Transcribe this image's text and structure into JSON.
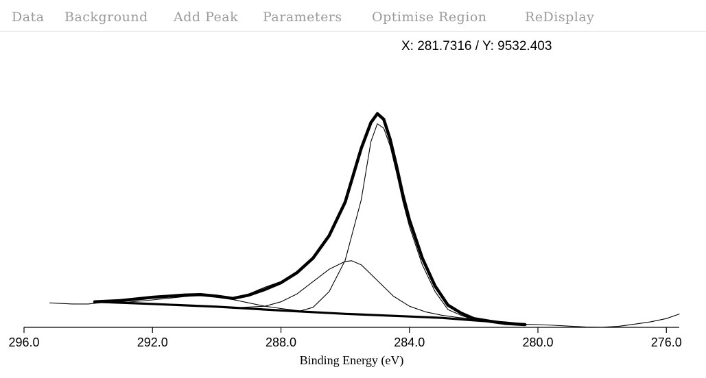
{
  "menu": {
    "items": [
      {
        "id": "data",
        "label": "Data"
      },
      {
        "id": "background",
        "label": "Background"
      },
      {
        "id": "add-peak",
        "label": "Add Peak"
      },
      {
        "id": "parameters",
        "label": "Parameters"
      },
      {
        "id": "optimise-region",
        "label": "Optimise Region"
      },
      {
        "id": "redisplay",
        "label": "ReDisplay"
      }
    ]
  },
  "cursor_readout": "X: 281.7316 / Y: 9532.403",
  "colors": {
    "menu_text": "#9a9a9a",
    "curve": "#000000",
    "background": "#ffffff"
  },
  "chart_data": {
    "type": "line",
    "title": "",
    "xlabel": "Binding Energy (eV)",
    "ylabel": "",
    "x_reversed": true,
    "xlim": [
      296.0,
      275.6
    ],
    "ylim": [
      0,
      1
    ],
    "x_ticks": [
      296.0,
      292.0,
      288.0,
      284.0,
      280.0,
      276.0
    ],
    "x_tick_labels": [
      "296.0",
      "292.0",
      "288.0",
      "284.0",
      "280.0",
      "276.0"
    ],
    "grid": false,
    "legend": "none",
    "series": [
      {
        "role": "raw-data",
        "x": [
          295.2,
          294.5,
          294.0,
          293.0,
          292.0,
          291.0,
          290.5,
          290.0,
          289.5,
          289.0,
          288.5,
          288.0,
          287.5,
          287.0,
          286.5,
          286.0,
          285.5,
          285.2,
          285.0,
          284.8,
          284.6,
          284.4,
          284.2,
          284.0,
          283.6,
          283.2,
          282.8,
          282.4,
          282.0,
          281.5,
          281.0,
          280.5,
          280.0,
          279.5,
          279.0,
          278.5,
          278.0,
          277.5,
          277.0,
          276.5,
          276.0,
          275.6
        ],
        "y": [
          0.1,
          0.095,
          0.095,
          0.11,
          0.125,
          0.135,
          0.135,
          0.125,
          0.12,
          0.14,
          0.17,
          0.195,
          0.24,
          0.3,
          0.4,
          0.545,
          0.785,
          0.9,
          0.94,
          0.915,
          0.83,
          0.71,
          0.58,
          0.47,
          0.3,
          0.175,
          0.09,
          0.055,
          0.03,
          0.02,
          0.01,
          0.005,
          0.003,
          0.0,
          -0.004,
          -0.008,
          -0.009,
          -0.005,
          0.005,
          0.015,
          0.03,
          0.05
        ]
      },
      {
        "role": "envelope",
        "x": [
          293.8,
          293.0,
          292.0,
          291.0,
          290.5,
          290.0,
          289.5,
          289.0,
          288.5,
          288.0,
          287.5,
          287.0,
          286.5,
          286.0,
          285.5,
          285.2,
          285.0,
          284.8,
          284.6,
          284.4,
          284.2,
          284.0,
          283.6,
          283.2,
          282.8,
          282.4,
          282.0,
          281.5,
          281.0,
          280.4
        ],
        "y": [
          0.105,
          0.11,
          0.125,
          0.135,
          0.137,
          0.13,
          0.12,
          0.135,
          0.16,
          0.19,
          0.235,
          0.3,
          0.4,
          0.55,
          0.79,
          0.905,
          0.945,
          0.92,
          0.83,
          0.71,
          0.58,
          0.47,
          0.3,
          0.175,
          0.09,
          0.055,
          0.03,
          0.018,
          0.008,
          0.003
        ]
      },
      {
        "role": "background",
        "x": [
          293.8,
          292.0,
          290.0,
          288.0,
          286.0,
          284.0,
          283.0,
          282.0,
          281.0,
          280.4
        ],
        "y": [
          0.105,
          0.095,
          0.083,
          0.066,
          0.051,
          0.039,
          0.033,
          0.022,
          0.012,
          0.003
        ]
      },
      {
        "role": "component-main",
        "x": [
          287.5,
          287.0,
          286.5,
          286.0,
          285.5,
          285.2,
          285.0,
          284.8,
          284.6,
          284.4,
          284.2,
          284.0,
          283.6,
          283.2,
          282.8,
          282.4,
          282.0,
          281.5,
          281.0,
          280.4
        ],
        "y": [
          0.06,
          0.08,
          0.15,
          0.29,
          0.56,
          0.82,
          0.9,
          0.88,
          0.8,
          0.68,
          0.55,
          0.44,
          0.27,
          0.15,
          0.07,
          0.045,
          0.025,
          0.015,
          0.006,
          0.003
        ]
      },
      {
        "role": "component-shoulder",
        "x": [
          289.5,
          288.5,
          288.0,
          287.5,
          287.0,
          286.5,
          286.0,
          285.8,
          285.5,
          285.0,
          284.5,
          284.0,
          283.5,
          283.0,
          282.5,
          282.0
        ],
        "y": [
          0.078,
          0.085,
          0.105,
          0.14,
          0.195,
          0.25,
          0.285,
          0.288,
          0.27,
          0.2,
          0.13,
          0.085,
          0.06,
          0.045,
          0.035,
          0.028
        ]
      },
      {
        "role": "component-broad",
        "x": [
          293.0,
          292.0,
          291.0,
          290.5,
          290.0,
          289.5,
          289.0,
          288.5,
          288.0,
          287.5,
          287.0,
          286.5
        ],
        "y": [
          0.1,
          0.113,
          0.128,
          0.133,
          0.13,
          0.115,
          0.1,
          0.085,
          0.075,
          0.066,
          0.058,
          0.052
        ]
      }
    ]
  }
}
